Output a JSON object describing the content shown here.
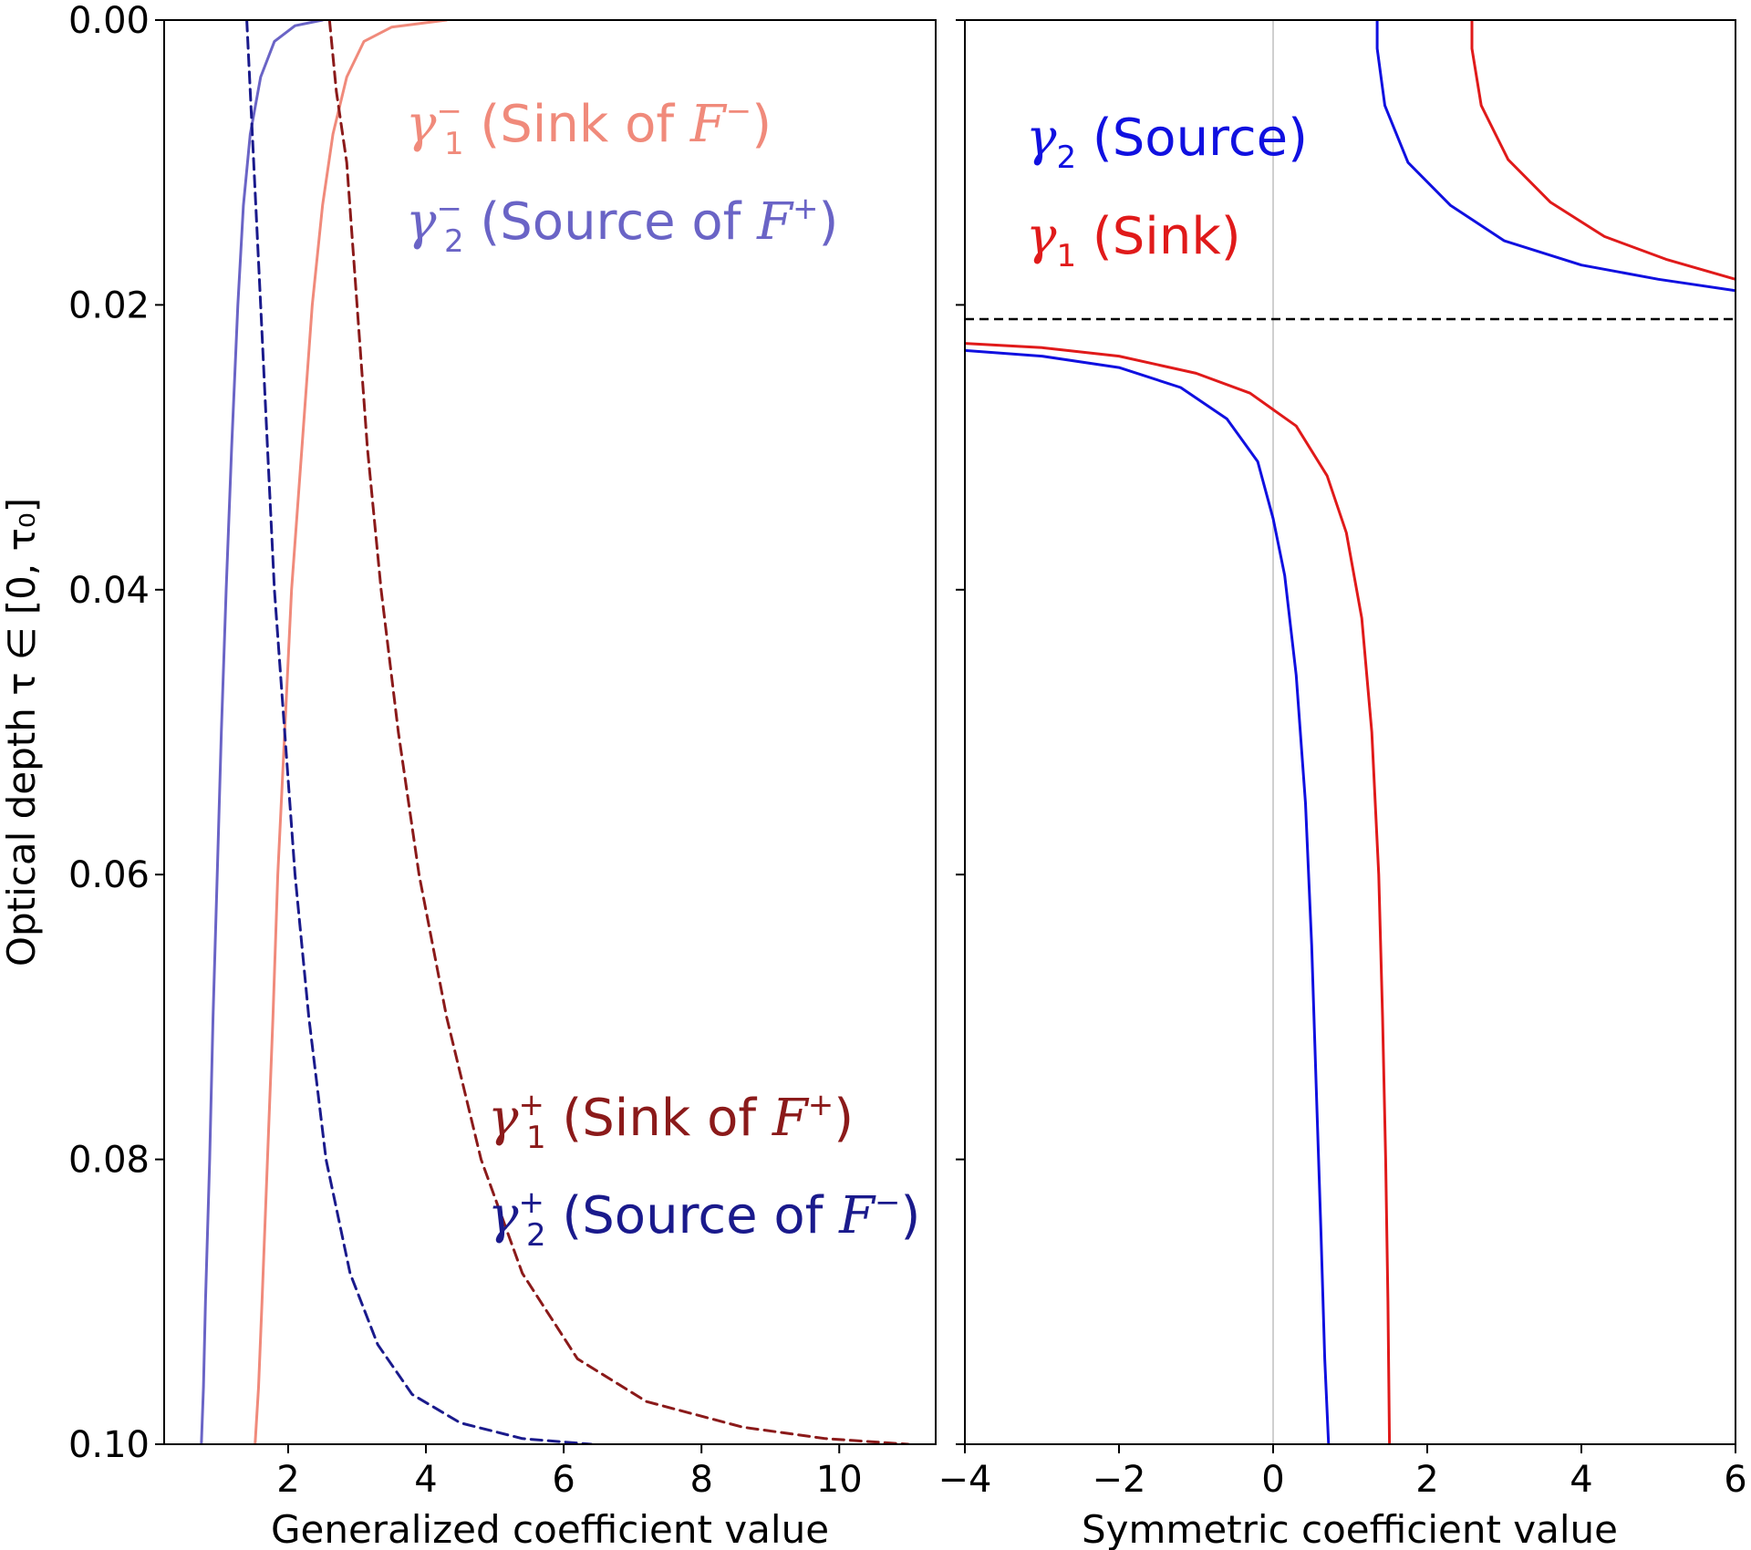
{
  "chart_data": [
    {
      "type": "line",
      "panel": "left",
      "xlabel": "Generalized coefficient value",
      "ylabel": "Optical depth τ ∈ [0, τ₀]",
      "xlim": [
        0.2,
        11.4
      ],
      "ylim": [
        0.1,
        0.0
      ],
      "y_inverted": true,
      "xticks": [
        2,
        4,
        6,
        8,
        10
      ],
      "xtick_labels": [
        "2",
        "4",
        "6",
        "8",
        "10"
      ],
      "yticks": [
        0.0,
        0.02,
        0.04,
        0.06,
        0.08,
        0.1
      ],
      "ytick_labels": [
        "0.00",
        "0.02",
        "0.04",
        "0.06",
        "0.08",
        "0.10"
      ],
      "series": [
        {
          "name": "γ₁⁻ (Sink of F⁻)",
          "legend_main": "γ",
          "legend_sub": "1",
          "legend_sup": "−",
          "legend_rest": " (Sink of ",
          "legend_var": "F",
          "legend_var_sup": "−",
          "legend_close": ")",
          "color": "#f08a7b",
          "dash": "solid",
          "points": [
            [
              4.3,
              0.0
            ],
            [
              3.5,
              0.0005
            ],
            [
              3.1,
              0.0015
            ],
            [
              2.85,
              0.004
            ],
            [
              2.65,
              0.008
            ],
            [
              2.5,
              0.013
            ],
            [
              2.35,
              0.02
            ],
            [
              2.2,
              0.03
            ],
            [
              2.05,
              0.04
            ],
            [
              1.95,
              0.05
            ],
            [
              1.85,
              0.06
            ],
            [
              1.78,
              0.07
            ],
            [
              1.7,
              0.08
            ],
            [
              1.62,
              0.09
            ],
            [
              1.57,
              0.096
            ],
            [
              1.52,
              0.1
            ]
          ]
        },
        {
          "name": "γ₂⁻ (Source of F⁺)",
          "legend_main": "γ",
          "legend_sub": "2",
          "legend_sup": "−",
          "legend_rest": " (Source of ",
          "legend_var": "F",
          "legend_var_sup": "+",
          "legend_close": ")",
          "color": "#6a64c6",
          "dash": "solid",
          "points": [
            [
              2.5,
              0.0
            ],
            [
              2.1,
              0.0004
            ],
            [
              1.8,
              0.0015
            ],
            [
              1.6,
              0.004
            ],
            [
              1.45,
              0.008
            ],
            [
              1.35,
              0.013
            ],
            [
              1.27,
              0.02
            ],
            [
              1.18,
              0.03
            ],
            [
              1.1,
              0.04
            ],
            [
              1.03,
              0.05
            ],
            [
              0.97,
              0.06
            ],
            [
              0.91,
              0.07
            ],
            [
              0.86,
              0.08
            ],
            [
              0.8,
              0.09
            ],
            [
              0.77,
              0.096
            ],
            [
              0.74,
              0.1
            ]
          ]
        },
        {
          "name": "γ₁⁺ (Sink of F⁺)",
          "legend_main": "γ",
          "legend_sub": "1",
          "legend_sup": "+",
          "legend_rest": " (Sink of ",
          "legend_var": "F",
          "legend_var_sup": "+",
          "legend_close": ")",
          "color": "#8b1a1a",
          "dash": "dashed",
          "points": [
            [
              2.6,
              0.0
            ],
            [
              2.7,
              0.005
            ],
            [
              2.85,
              0.01
            ],
            [
              3.0,
              0.02
            ],
            [
              3.15,
              0.03
            ],
            [
              3.35,
              0.04
            ],
            [
              3.6,
              0.05
            ],
            [
              3.9,
              0.06
            ],
            [
              4.3,
              0.07
            ],
            [
              4.8,
              0.08
            ],
            [
              5.4,
              0.088
            ],
            [
              6.2,
              0.094
            ],
            [
              7.2,
              0.097
            ],
            [
              8.6,
              0.0988
            ],
            [
              9.8,
              0.0996
            ],
            [
              11.0,
              0.1
            ]
          ]
        },
        {
          "name": "γ₂⁺ (Source of F⁻)",
          "legend_main": "γ",
          "legend_sub": "2",
          "legend_sup": "+",
          "legend_rest": " (Source of ",
          "legend_var": "F",
          "legend_var_sup": "−",
          "legend_close": ")",
          "color": "#1a1a8c",
          "dash": "dashed",
          "points": [
            [
              1.4,
              0.0
            ],
            [
              1.45,
              0.005
            ],
            [
              1.5,
              0.01
            ],
            [
              1.6,
              0.02
            ],
            [
              1.7,
              0.03
            ],
            [
              1.8,
              0.04
            ],
            [
              1.95,
              0.05
            ],
            [
              2.1,
              0.06
            ],
            [
              2.3,
              0.07
            ],
            [
              2.55,
              0.08
            ],
            [
              2.9,
              0.088
            ],
            [
              3.3,
              0.093
            ],
            [
              3.8,
              0.0965
            ],
            [
              4.5,
              0.0985
            ],
            [
              5.4,
              0.0996
            ],
            [
              6.4,
              0.1
            ]
          ]
        }
      ]
    },
    {
      "type": "line",
      "panel": "right",
      "xlabel": "Symmetric coefficient value",
      "xlim": [
        -4,
        6
      ],
      "ylim": [
        0.1,
        0.0
      ],
      "y_inverted": true,
      "xticks": [
        -4,
        -2,
        0,
        2,
        4,
        6
      ],
      "xtick_labels": [
        "−4",
        "−2",
        "0",
        "2",
        "4",
        "6"
      ],
      "yticks": [
        0.0,
        0.02,
        0.04,
        0.06,
        0.08,
        0.1
      ],
      "vline_x": 0,
      "hline_y": 0.021,
      "series": [
        {
          "name": "γ₂ (Source)",
          "legend_main": "γ",
          "legend_sub": "2",
          "legend_rest": " (Source)",
          "color": "#1010e0",
          "dash": "solid",
          "segments": [
            [
              [
                1.35,
                0.0
              ],
              [
                1.35,
                0.002
              ],
              [
                1.45,
                0.006
              ],
              [
                1.75,
                0.01
              ],
              [
                2.3,
                0.013
              ],
              [
                3.0,
                0.0155
              ],
              [
                4.0,
                0.0172
              ],
              [
                5.0,
                0.0182
              ],
              [
                6.0,
                0.019
              ]
            ],
            [
              [
                -4.0,
                0.0232
              ],
              [
                -3.0,
                0.0236
              ],
              [
                -2.0,
                0.0244
              ],
              [
                -1.2,
                0.0258
              ],
              [
                -0.6,
                0.028
              ],
              [
                -0.2,
                0.031
              ],
              [
                0.0,
                0.035
              ],
              [
                0.15,
                0.039
              ],
              [
                0.3,
                0.046
              ],
              [
                0.42,
                0.055
              ],
              [
                0.5,
                0.065
              ],
              [
                0.56,
                0.075
              ],
              [
                0.62,
                0.085
              ],
              [
                0.67,
                0.094
              ],
              [
                0.72,
                0.1
              ]
            ]
          ]
        },
        {
          "name": "γ₁ (Sink)",
          "legend_main": "γ",
          "legend_sub": "1",
          "legend_rest": " (Sink)",
          "color": "#e01a1a",
          "dash": "solid",
          "segments": [
            [
              [
                2.58,
                0.0
              ],
              [
                2.58,
                0.002
              ],
              [
                2.7,
                0.006
              ],
              [
                3.05,
                0.0098
              ],
              [
                3.6,
                0.0128
              ],
              [
                4.3,
                0.0152
              ],
              [
                5.1,
                0.0168
              ],
              [
                6.0,
                0.0182
              ]
            ],
            [
              [
                -4.0,
                0.0227
              ],
              [
                -3.0,
                0.023
              ],
              [
                -2.0,
                0.0236
              ],
              [
                -1.0,
                0.0248
              ],
              [
                -0.3,
                0.0262
              ],
              [
                0.3,
                0.0285
              ],
              [
                0.7,
                0.032
              ],
              [
                0.95,
                0.036
              ],
              [
                1.15,
                0.042
              ],
              [
                1.28,
                0.05
              ],
              [
                1.37,
                0.06
              ],
              [
                1.42,
                0.07
              ],
              [
                1.46,
                0.08
              ],
              [
                1.49,
                0.09
              ],
              [
                1.51,
                0.1
              ]
            ]
          ]
        }
      ]
    }
  ]
}
